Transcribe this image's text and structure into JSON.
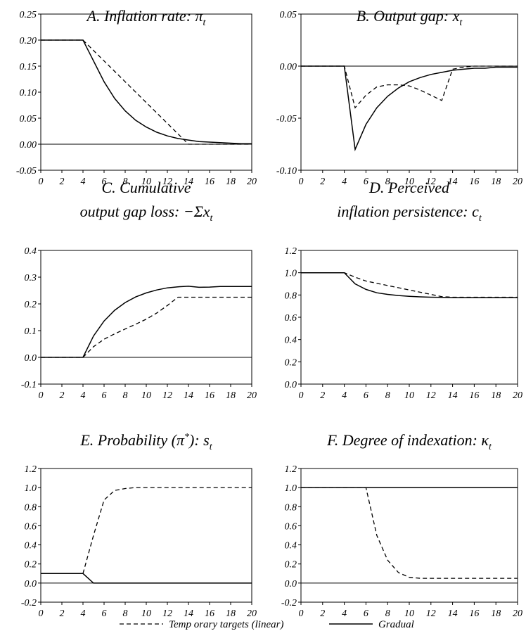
{
  "chart_data": [
    {
      "type": "line",
      "title": "A. Inflation rate: π",
      "title_sub": "t",
      "x_ticks": [
        "0",
        "2",
        "4",
        "6",
        "8",
        "10",
        "12",
        "14",
        "16",
        "18",
        "20"
      ],
      "y_ticks": [
        "0.25",
        "0.20",
        "0.15",
        "0.10",
        "0.05",
        "0.00",
        "-0.05"
      ],
      "xlim": [
        0,
        20
      ],
      "ylim": [
        -0.05,
        0.25
      ],
      "zero_line": true,
      "series": [
        {
          "name": "Temp orary targets (linear)",
          "style": "dashed",
          "x": [
            0,
            4,
            14,
            20
          ],
          "y": [
            0.2,
            0.2,
            0.0,
            0.0
          ]
        },
        {
          "name": "Gradual",
          "style": "solid",
          "x": [
            0,
            1,
            2,
            3,
            4,
            5,
            6,
            7,
            8,
            9,
            10,
            11,
            12,
            13,
            14,
            15,
            16,
            17,
            18,
            19,
            20
          ],
          "y": [
            0.2,
            0.2,
            0.2,
            0.2,
            0.2,
            0.16,
            0.12,
            0.088,
            0.064,
            0.046,
            0.033,
            0.023,
            0.016,
            0.011,
            0.008,
            0.005,
            0.004,
            0.003,
            0.002,
            0.001,
            0.001
          ]
        }
      ]
    },
    {
      "type": "line",
      "title": "B. Output gap: x",
      "title_sub": "t",
      "x_ticks": [
        "0",
        "2",
        "4",
        "6",
        "8",
        "10",
        "12",
        "14",
        "16",
        "18",
        "20"
      ],
      "y_ticks": [
        "0.05",
        "0.00",
        "-0.05",
        "-0.10"
      ],
      "xlim": [
        0,
        20
      ],
      "ylim": [
        -0.1,
        0.05
      ],
      "zero_line": true,
      "series": [
        {
          "name": "Temp orary targets (linear)",
          "style": "dashed",
          "x": [
            0,
            4,
            5,
            6,
            7,
            8,
            9,
            10,
            11,
            12,
            13,
            14,
            15,
            16,
            20
          ],
          "y": [
            0,
            0,
            -0.04,
            -0.028,
            -0.02,
            -0.018,
            -0.018,
            -0.019,
            -0.023,
            -0.028,
            -0.033,
            -0.003,
            -0.001,
            0,
            0
          ]
        },
        {
          "name": "Gradual",
          "style": "solid",
          "x": [
            0,
            4,
            5,
            6,
            7,
            8,
            9,
            10,
            11,
            12,
            13,
            14,
            15,
            16,
            17,
            18,
            19,
            20
          ],
          "y": [
            0,
            0,
            -0.08,
            -0.056,
            -0.04,
            -0.029,
            -0.021,
            -0.015,
            -0.011,
            -0.008,
            -0.006,
            -0.004,
            -0.003,
            -0.002,
            -0.002,
            -0.001,
            -0.001,
            -0.001
          ]
        }
      ]
    },
    {
      "type": "line",
      "title": "C. Cumulative",
      "title_line2": "output gap loss: −Σx",
      "title_sub": "t",
      "x_ticks": [
        "0",
        "2",
        "4",
        "6",
        "8",
        "10",
        "12",
        "14",
        "16",
        "18",
        "20"
      ],
      "y_ticks": [
        "0.4",
        "0.3",
        "0.2",
        "0.1",
        "0.0",
        "-0.1"
      ],
      "xlim": [
        0,
        20
      ],
      "ylim": [
        -0.1,
        0.4
      ],
      "zero_line": true,
      "series": [
        {
          "name": "Temp orary targets (linear)",
          "style": "dashed",
          "x": [
            0,
            4,
            5,
            6,
            7,
            8,
            9,
            10,
            11,
            12,
            13,
            14,
            20
          ],
          "y": [
            0,
            0,
            0.04,
            0.068,
            0.088,
            0.106,
            0.124,
            0.143,
            0.166,
            0.194,
            0.225,
            0.225,
            0.225
          ]
        },
        {
          "name": "Gradual",
          "style": "solid",
          "x": [
            0,
            4,
            5,
            6,
            7,
            8,
            9,
            10,
            11,
            12,
            13,
            14,
            15,
            16,
            17,
            18,
            19,
            20
          ],
          "y": [
            0,
            0,
            0.08,
            0.136,
            0.176,
            0.205,
            0.226,
            0.241,
            0.252,
            0.26,
            0.264,
            0.266,
            0.262,
            0.263,
            0.265,
            0.265,
            0.265,
            0.265
          ]
        }
      ]
    },
    {
      "type": "line",
      "title": "D. Perceived",
      "title_line2": "inflation persistence: c",
      "title_sub": "t",
      "x_ticks": [
        "0",
        "2",
        "4",
        "6",
        "8",
        "10",
        "12",
        "14",
        "16",
        "18",
        "20"
      ],
      "y_ticks": [
        "1.2",
        "1.0",
        "0.8",
        "0.6",
        "0.4",
        "0.2",
        "0.0"
      ],
      "xlim": [
        0,
        20
      ],
      "ylim": [
        0.0,
        1.2
      ],
      "zero_line": false,
      "series": [
        {
          "name": "Temp orary targets (linear)",
          "style": "dashed",
          "x": [
            0,
            4,
            5,
            6,
            7,
            8,
            9,
            10,
            11,
            12,
            13,
            14,
            15,
            20
          ],
          "y": [
            1.0,
            1.0,
            0.96,
            0.925,
            0.905,
            0.885,
            0.865,
            0.845,
            0.825,
            0.805,
            0.785,
            0.78,
            0.78,
            0.78
          ]
        },
        {
          "name": "Gradual",
          "style": "solid",
          "x": [
            0,
            4,
            5,
            6,
            7,
            8,
            9,
            10,
            11,
            12,
            13,
            14,
            20
          ],
          "y": [
            1.0,
            1.0,
            0.9,
            0.85,
            0.82,
            0.805,
            0.795,
            0.788,
            0.783,
            0.78,
            0.778,
            0.777,
            0.777
          ]
        }
      ]
    },
    {
      "type": "line",
      "title": "E. Probability (π",
      "title_sup": "*",
      "title_mid": "): s",
      "title_sub": "t",
      "x_ticks": [
        "0",
        "2",
        "4",
        "6",
        "8",
        "10",
        "12",
        "14",
        "16",
        "18",
        "20"
      ],
      "y_ticks": [
        "1.2",
        "1.0",
        "0.8",
        "0.6",
        "0.4",
        "0.2",
        "0.0",
        "-0.2"
      ],
      "xlim": [
        0,
        20
      ],
      "ylim": [
        -0.2,
        1.2
      ],
      "zero_line": true,
      "series": [
        {
          "name": "Temp orary targets (linear)",
          "style": "dashed",
          "x": [
            0,
            4,
            5,
            6,
            7,
            8,
            9,
            10,
            20
          ],
          "y": [
            0.1,
            0.1,
            0.5,
            0.87,
            0.97,
            0.99,
            1.0,
            1.0,
            1.0
          ]
        },
        {
          "name": "Gradual",
          "style": "solid",
          "x": [
            0,
            4,
            5,
            20
          ],
          "y": [
            0.1,
            0.1,
            0.0,
            0.0
          ]
        }
      ]
    },
    {
      "type": "line",
      "title": "F. Degree of indexation: κ",
      "title_sub": "t",
      "x_ticks": [
        "0",
        "2",
        "4",
        "6",
        "8",
        "10",
        "12",
        "14",
        "16",
        "18",
        "20"
      ],
      "y_ticks": [
        "1.2",
        "1.0",
        "0.8",
        "0.6",
        "0.4",
        "0.2",
        "0.0",
        "-0.2"
      ],
      "xlim": [
        0,
        20
      ],
      "ylim": [
        -0.2,
        1.2
      ],
      "zero_line": true,
      "series": [
        {
          "name": "Temp orary targets (linear)",
          "style": "dashed",
          "x": [
            0,
            6,
            7,
            8,
            9,
            10,
            11,
            12,
            20
          ],
          "y": [
            1.0,
            1.0,
            0.5,
            0.24,
            0.11,
            0.06,
            0.05,
            0.05,
            0.05
          ]
        },
        {
          "name": "Gradual",
          "style": "solid",
          "x": [
            0,
            20
          ],
          "y": [
            1.0,
            1.0
          ]
        }
      ]
    }
  ],
  "legend": {
    "dashed_label": "Temp orary targets (linear)",
    "solid_label": "Gradual"
  }
}
